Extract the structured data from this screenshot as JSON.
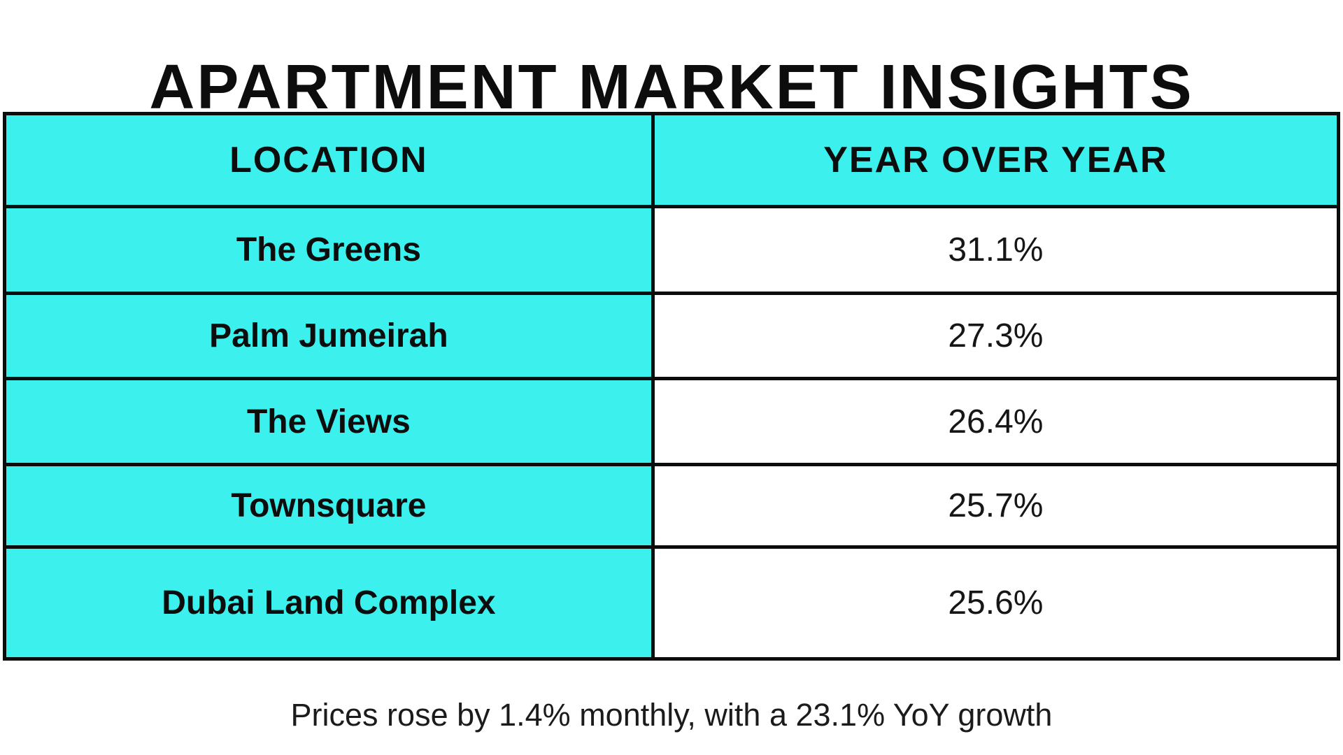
{
  "title": "APARTMENT MARKET INSIGHTS",
  "table": {
    "headers": {
      "location": "LOCATION",
      "yoy": "YEAR OVER YEAR"
    },
    "rows": [
      {
        "location": "The Greens",
        "yoy": "31.1%"
      },
      {
        "location": "Palm Jumeirah",
        "yoy": "27.3%"
      },
      {
        "location": "The Views",
        "yoy": "26.4%"
      },
      {
        "location": "Townsquare",
        "yoy": "25.7%"
      },
      {
        "location": "Dubai Land Complex",
        "yoy": "25.6%"
      }
    ]
  },
  "footer": {
    "note": "Prices rose by 1.4% monthly, with a 23.1% YoY growth"
  },
  "colors": {
    "accent_cyan": "#3bf0ed",
    "border_black": "#0b0d0d",
    "text_black": "#0d0d0d",
    "background": "#ffffff"
  },
  "chart_data": {
    "type": "table",
    "title": "APARTMENT MARKET INSIGHTS",
    "columns": [
      "LOCATION",
      "YEAR OVER YEAR"
    ],
    "categories": [
      "The Greens",
      "Palm Jumeirah",
      "The Views",
      "Townsquare",
      "Dubai Land Complex"
    ],
    "values": [
      31.1,
      27.3,
      26.4,
      25.7,
      25.6
    ],
    "unit": "%",
    "annotation": "Prices rose by 1.4% monthly, with a 23.1% YoY growth",
    "layout_hints": {
      "header_background": "#3bf0ed",
      "category_column_background": "#3bf0ed",
      "value_column_background": "#ffffff",
      "grid": true
    }
  }
}
